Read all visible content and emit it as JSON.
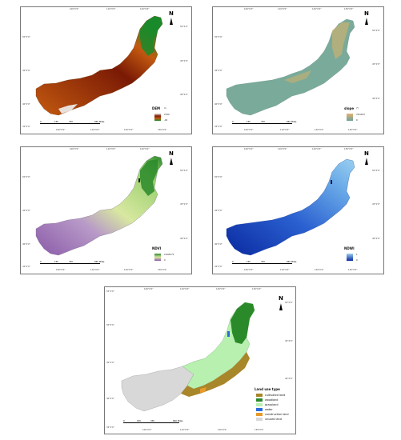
{
  "panels": {
    "dem": {
      "lon_labels_top": [
        "100°0'0\"",
        "110°0'0\"",
        "120°0'0\""
      ],
      "lon_labels_bottom": [
        "100°0'0\"",
        "110°0'0\"",
        "120°0'0\"",
        "130°0'0\""
      ],
      "lat_labels_left": [
        "50°0'0\"",
        "45°0'0\"",
        "40°0'0\"",
        "35°0'0\""
      ],
      "lat_labels_right": [
        "50°0'0\"",
        "45°0'0\"",
        "40°0'0\""
      ],
      "north": "N",
      "legend_title": "DEM",
      "legend_unit": "m",
      "legend_high": "2799",
      "legend_low": "-92",
      "scale_labels": [
        "0",
        "165",
        "330",
        "660 Miles"
      ],
      "colors": {
        "low": "#1a8a2a",
        "mid": "#c45a10",
        "high": "#7a1a05",
        "peak": "#e8e0d8"
      }
    },
    "slope": {
      "lon_labels_top": [
        "100°0'0\"",
        "110°0'0\"",
        "120°0'0\"",
        "130°0'0\""
      ],
      "lon_labels_bottom": [
        "100°0'0\"",
        "110°0'0\"",
        "120°0'0\"",
        "130°0'0\""
      ],
      "lat_labels_left": [
        "50°0'0\"",
        "45°0'0\"",
        "40°0'0\"",
        "35°0'0\""
      ],
      "lat_labels_right": [
        "50°0'0\"",
        "45°0'0\"",
        "40°0'0\""
      ],
      "north": "N",
      "legend_title": "slope",
      "legend_unit": "(°)",
      "legend_high": "78.6033",
      "legend_low": "0",
      "scale_labels": [
        "0",
        "165",
        "330",
        "660 Miles"
      ],
      "colors": {
        "low": "#6aa59a",
        "high": "#e8b070"
      }
    },
    "ndvi": {
      "lon_labels_top": [
        "100°0'0\"",
        "110°0'0\"",
        "120°0'0\""
      ],
      "lon_labels_bottom": [
        "100°0'0\"",
        "110°0'0\"",
        "120°0'0\"",
        "130°0'0\""
      ],
      "lat_labels_left": [
        "50°0'0\"",
        "45°0'0\"",
        "40°0'0\"",
        "35°0'0\""
      ],
      "lat_labels_right": [
        "50°0'0\"",
        "45°0'0\"",
        "40°0'0\""
      ],
      "north": "N",
      "legend_title": "NDVI",
      "legend_high": "0.993271",
      "legend_low": "0",
      "scale_labels": [
        "0",
        "165",
        "330",
        "660 Miles"
      ],
      "colors": {
        "low": "#8a5aa8",
        "mid": "#d8e8a0",
        "high": "#2a8a2a"
      }
    },
    "ndwi": {
      "lon_labels_top": [
        "100°0'0\"",
        "110°0'0\"",
        "120°0'0\"",
        "130°0'0\""
      ],
      "lon_labels_bottom": [
        "100°0'0\"",
        "110°0'0\"",
        "120°0'0\"",
        "130°0'0\""
      ],
      "lat_labels_left": [
        "50°0'0\"",
        "45°0'0\"",
        "40°0'0\"",
        "35°0'0\""
      ],
      "lat_labels_right": [
        "50°0'0\"",
        "45°0'0\"",
        "40°0'0\""
      ],
      "north": "N",
      "legend_title": "NDWI",
      "legend_high": "1",
      "legend_low": "0",
      "scale_labels": [
        "0",
        "165",
        "330",
        "660 Miles"
      ],
      "colors": {
        "low": "#0a2aa0",
        "high": "#9ad0f0"
      }
    },
    "landuse": {
      "lon_labels_top": [
        "100°0'0\"",
        "110°0'0\"",
        "120°0'0\"",
        "130°0'0\""
      ],
      "lon_labels_bottom": [
        "100°0'0\"",
        "110°0'0\"",
        "120°0'0\"",
        "130°0'0\""
      ],
      "lat_labels_left": [
        "55°0'0\"",
        "50°0'0\"",
        "45°0'0\"",
        "40°0'0\"",
        "35°0'0\""
      ],
      "lat_labels_right": [
        "50°0'0\"",
        "45°0'0\"",
        "40°0'0\""
      ],
      "north": "N",
      "legend_title": "Land use type",
      "legend_items": [
        {
          "label": "cultivated land",
          "color": "#a8862a"
        },
        {
          "label": "woodland",
          "color": "#2a8a2a"
        },
        {
          "label": "grassland",
          "color": "#b8f0b0"
        },
        {
          "label": "water",
          "color": "#2a6ae0"
        },
        {
          "label": "construction land",
          "color": "#e89a2a"
        },
        {
          "label": "unused land",
          "color": "#d8d8d8"
        }
      ],
      "scale_labels": [
        "0",
        "165",
        "330",
        "660 Miles"
      ]
    }
  }
}
